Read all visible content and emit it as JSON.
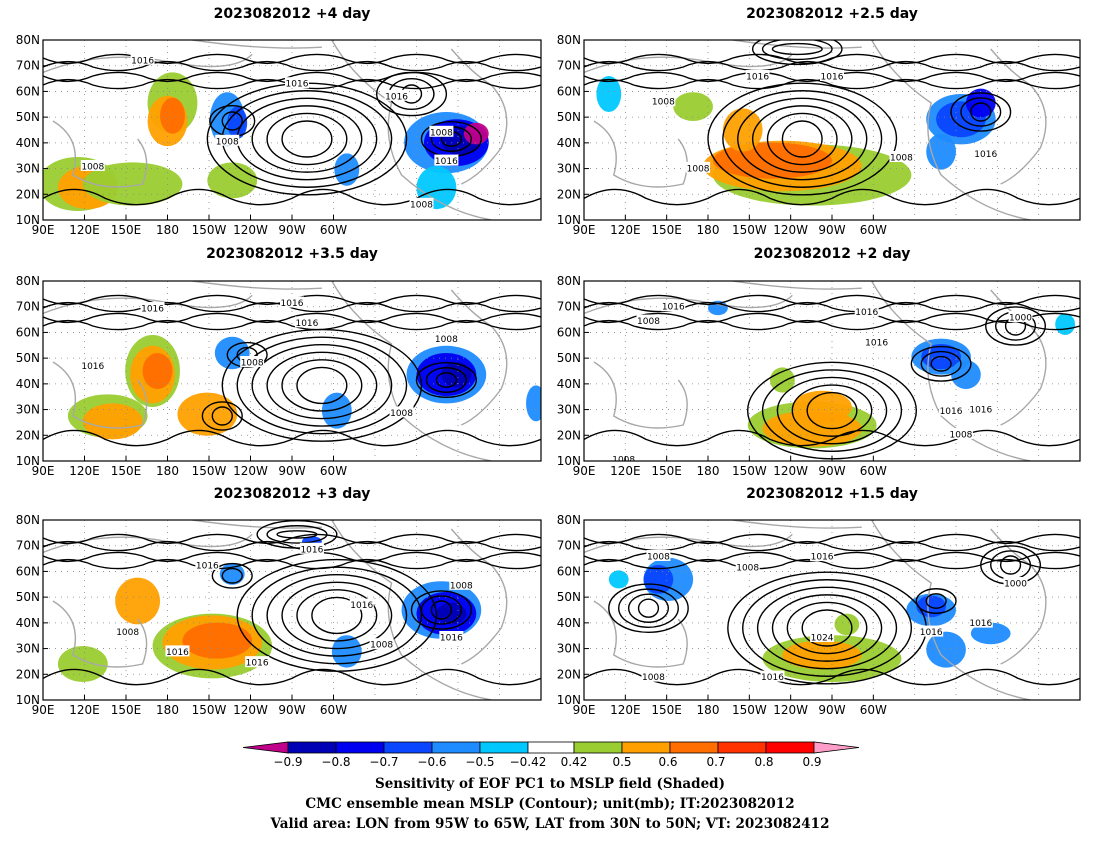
{
  "panels": [
    {
      "title": "2023082012 +4 day"
    },
    {
      "title": "2023082012 +2.5 day"
    },
    {
      "title": "2023082012 +3.5 day"
    },
    {
      "title": "2023082012 +2 day"
    },
    {
      "title": "2023082012 +3 day"
    },
    {
      "title": "2023082012 +1.5 day"
    }
  ],
  "axes": {
    "lat_labels": [
      "10N",
      "20N",
      "30N",
      "40N",
      "50N",
      "60N",
      "70N",
      "80N"
    ],
    "lon_labels": [
      "90E",
      "120E",
      "150E",
      "180",
      "150W",
      "120W",
      "90W",
      "60W"
    ]
  },
  "contour_labels": {
    "p0": [
      "1016",
      "1016",
      "1008",
      "1008",
      "1016",
      "1008",
      "1016",
      "1008"
    ],
    "p1": [
      "1016",
      "1016",
      "1008",
      "1016",
      "1008",
      "1008"
    ],
    "p2": [
      "1016",
      "1016",
      "1016",
      "1016",
      "1008",
      "1008",
      "1008"
    ],
    "p3": [
      "1016",
      "1008",
      "1016",
      "1016",
      "1000",
      "1016",
      "1016",
      "1008",
      "1008"
    ],
    "p4": [
      "1016",
      "1016",
      "1008",
      "1016",
      "1016",
      "1016",
      "1008",
      "1008",
      "1016"
    ],
    "p5": [
      "1008",
      "1016",
      "1008",
      "1000",
      "1016",
      "1016",
      "1024",
      "1016",
      "1008"
    ]
  },
  "colorbar": {
    "labels": [
      "−0.9",
      "−0.8",
      "−0.7",
      "−0.6",
      "−0.5",
      "−0.42",
      "0.42",
      "0.5",
      "0.6",
      "0.7",
      "0.8",
      "0.9"
    ],
    "colors": {
      "below_min": "#c0008a",
      "c1": "#0000b4",
      "c2": "#0000f0",
      "c3": "#0a46ff",
      "c4": "#1e8cff",
      "c5": "#00c8ff",
      "white": "#ffffff",
      "w1": "#9acd32",
      "w2": "#ffa000",
      "w3": "#ff6e00",
      "w4": "#ff3200",
      "w5": "#ff0000",
      "above_max": "#ff9ec8"
    }
  },
  "caption": {
    "line1": "Sensitivity of EOF PC1 to MSLP field (Shaded)",
    "line2": "CMC ensemble mean MSLP (Contour); unit(mb); IT:2023082012",
    "line3": "Valid area: LON from 95W to 65W, LAT from 30N to 50N; VT: 2023082412"
  }
}
